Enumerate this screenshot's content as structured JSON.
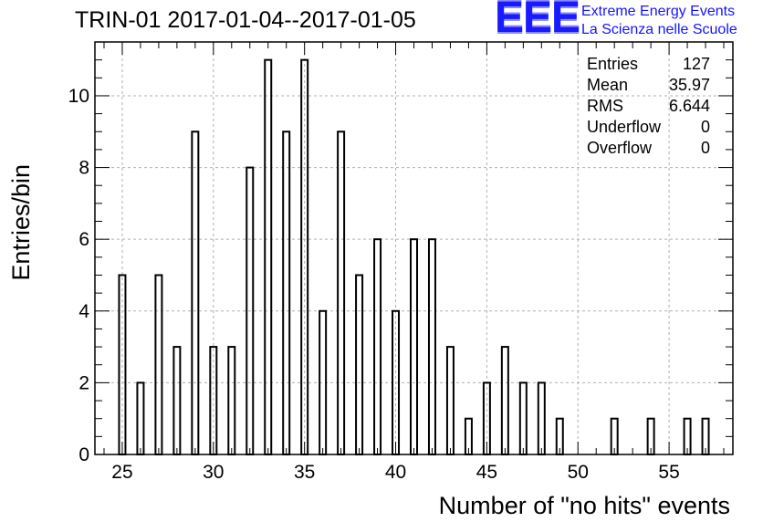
{
  "header": {
    "title": "TRIN-01 2017-01-04--2017-01-05",
    "logo_mark": "EEE",
    "logo_line1": "Extreme Energy Events",
    "logo_line2": "La Scienza nelle Scuole"
  },
  "stats": [
    {
      "label": "Entries",
      "value": "127"
    },
    {
      "label": "Mean",
      "value": "35.97"
    },
    {
      "label": "RMS",
      "value": "6.644"
    },
    {
      "label": "Underflow",
      "value": "0"
    },
    {
      "label": "Overflow",
      "value": "0"
    }
  ],
  "chart_data": {
    "type": "bar",
    "xlabel": "Number of \"no hits\" events",
    "ylabel": "Entries/bin",
    "xlim": [
      23.5,
      58.5
    ],
    "ylim": [
      0,
      11.5
    ],
    "grid": true,
    "x_ticks": [
      25,
      30,
      35,
      40,
      45,
      50,
      55
    ],
    "y_ticks": [
      0,
      2,
      4,
      6,
      8,
      10
    ],
    "bin_width": 0.35,
    "x": [
      25,
      26,
      27,
      28,
      29,
      30,
      31,
      32,
      33,
      34,
      35,
      36,
      37,
      38,
      39,
      40,
      41,
      42,
      43,
      44,
      45,
      46,
      47,
      48,
      49,
      52,
      54,
      56,
      57
    ],
    "values": [
      5,
      2,
      5,
      3,
      9,
      3,
      3,
      8,
      11,
      9,
      11,
      4,
      9,
      5,
      6,
      4,
      6,
      6,
      3,
      1,
      2,
      3,
      2,
      2,
      1,
      1,
      1,
      1,
      1
    ]
  }
}
